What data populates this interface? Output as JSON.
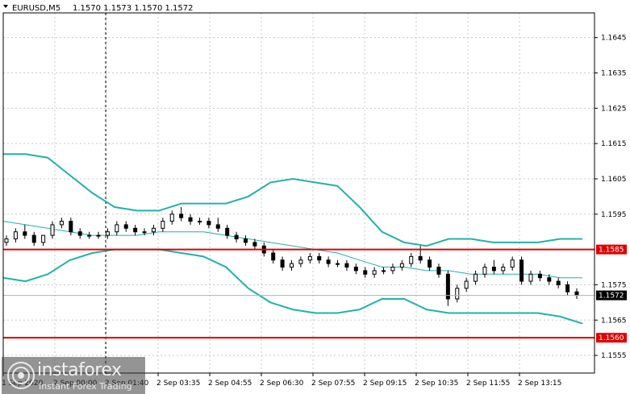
{
  "header": {
    "symbol": "EURUSD,M5",
    "ohlc": "1.1570 1.1573 1.1570 1.1572"
  },
  "logo": {
    "brand": "instaforex",
    "tagline": "Instant Forex Trading"
  },
  "chart_data": {
    "type": "candlestick",
    "ylim": [
      1.155,
      1.1652
    ],
    "y_ticks": [
      "1.1645",
      "1.1635",
      "1.1625",
      "1.1615",
      "1.1605",
      "1.1595",
      "1.1575",
      "1.1565",
      "1.1555"
    ],
    "x_ticks": [
      "1 Sep 2020",
      "2 Sep 00:00",
      "2 Sep 01:40",
      "2 Sep 03:35",
      "2 Sep 04:55",
      "2 Sep 06:30",
      "2 Sep 07:55",
      "2 Sep 09:15",
      "2 Sep 10:35",
      "2 Sep 11:55",
      "2 Sep 13:15"
    ],
    "levels": [
      {
        "label": "1.1585",
        "value": 1.1585,
        "color": "#e00000"
      },
      {
        "label": "1.1560",
        "value": 1.156,
        "color": "#e00000"
      }
    ],
    "current_price": {
      "label": "1.1572",
      "value": 1.1572
    },
    "bands": {
      "upper": [
        1.1612,
        1.1612,
        1.1611,
        1.1606,
        1.1601,
        1.1597,
        1.1596,
        1.1596,
        1.1598,
        1.1598,
        1.1598,
        1.16,
        1.1604,
        1.1605,
        1.1604,
        1.1603,
        1.1597,
        1.159,
        1.1587,
        1.1586,
        1.1588,
        1.1588,
        1.1587,
        1.1587,
        1.1587,
        1.1588,
        1.1588
      ],
      "middle": [
        1.1593,
        1.1592,
        1.1591,
        1.159,
        1.1589,
        1.1589,
        1.1589,
        1.159,
        1.159,
        1.159,
        1.1589,
        1.1588,
        1.1587,
        1.1586,
        1.1585,
        1.1584,
        1.1582,
        1.158,
        1.158,
        1.1579,
        1.1579,
        1.1578,
        1.1578,
        1.1578,
        1.1578,
        1.1577,
        1.1577
      ],
      "lower": [
        1.1577,
        1.1576,
        1.1578,
        1.1582,
        1.1584,
        1.1585,
        1.1585,
        1.1585,
        1.1584,
        1.1583,
        1.158,
        1.1574,
        1.157,
        1.1568,
        1.1567,
        1.1567,
        1.1568,
        1.1571,
        1.1571,
        1.1568,
        1.1567,
        1.1567,
        1.1567,
        1.1567,
        1.1567,
        1.1566,
        1.1564
      ]
    },
    "candles": [
      [
        1.1587,
        1.1589,
        1.1586,
        1.1588
      ],
      [
        1.1588,
        1.1591,
        1.1587,
        1.159
      ],
      [
        1.159,
        1.1592,
        1.1588,
        1.1589
      ],
      [
        1.1589,
        1.159,
        1.1586,
        1.1587
      ],
      [
        1.1587,
        1.1589,
        1.1586,
        1.1589
      ],
      [
        1.1589,
        1.1593,
        1.1588,
        1.1592
      ],
      [
        1.1592,
        1.1594,
        1.1591,
        1.1593
      ],
      [
        1.1593,
        1.1594,
        1.1589,
        1.159
      ],
      [
        1.159,
        1.1591,
        1.1588,
        1.1589
      ],
      [
        1.1589,
        1.159,
        1.1588,
        1.1589
      ],
      [
        1.1589,
        1.159,
        1.1588,
        1.1589
      ],
      [
        1.1589,
        1.1591,
        1.1588,
        1.159
      ],
      [
        1.159,
        1.1593,
        1.1589,
        1.1592
      ],
      [
        1.1592,
        1.1593,
        1.159,
        1.1591
      ],
      [
        1.1591,
        1.1592,
        1.1589,
        1.159
      ],
      [
        1.159,
        1.1591,
        1.1589,
        1.159
      ],
      [
        1.159,
        1.1592,
        1.1589,
        1.1591
      ],
      [
        1.1591,
        1.1594,
        1.159,
        1.1593
      ],
      [
        1.1593,
        1.1596,
        1.1592,
        1.1595
      ],
      [
        1.1595,
        1.1597,
        1.1593,
        1.1594
      ],
      [
        1.1594,
        1.1595,
        1.1592,
        1.1593
      ],
      [
        1.1593,
        1.1594,
        1.1592,
        1.1593
      ],
      [
        1.1593,
        1.1594,
        1.1591,
        1.1592
      ],
      [
        1.1592,
        1.1594,
        1.159,
        1.1591
      ],
      [
        1.1591,
        1.1592,
        1.1588,
        1.1589
      ],
      [
        1.1589,
        1.159,
        1.1587,
        1.1588
      ],
      [
        1.1588,
        1.1589,
        1.1586,
        1.1587
      ],
      [
        1.1587,
        1.1588,
        1.1585,
        1.1586
      ],
      [
        1.1586,
        1.1587,
        1.1583,
        1.1584
      ],
      [
        1.1584,
        1.1585,
        1.1581,
        1.1582
      ],
      [
        1.1582,
        1.1583,
        1.1579,
        1.158
      ],
      [
        1.158,
        1.1582,
        1.1579,
        1.1581
      ],
      [
        1.1581,
        1.1583,
        1.158,
        1.1582
      ],
      [
        1.1582,
        1.1584,
        1.1581,
        1.1583
      ],
      [
        1.1583,
        1.1584,
        1.1581,
        1.1582
      ],
      [
        1.1582,
        1.1583,
        1.158,
        1.1581
      ],
      [
        1.1581,
        1.1582,
        1.158,
        1.1581
      ],
      [
        1.1581,
        1.1582,
        1.1579,
        1.158
      ],
      [
        1.158,
        1.1581,
        1.1578,
        1.1579
      ],
      [
        1.1579,
        1.158,
        1.1577,
        1.1578
      ],
      [
        1.1578,
        1.158,
        1.1577,
        1.1579
      ],
      [
        1.1579,
        1.158,
        1.1578,
        1.1579
      ],
      [
        1.1579,
        1.1581,
        1.1578,
        1.158
      ],
      [
        1.158,
        1.1582,
        1.1579,
        1.1581
      ],
      [
        1.1581,
        1.1584,
        1.158,
        1.1583
      ],
      [
        1.1583,
        1.1586,
        1.1581,
        1.1582
      ],
      [
        1.1582,
        1.1583,
        1.1579,
        1.158
      ],
      [
        1.158,
        1.1581,
        1.1577,
        1.1578
      ],
      [
        1.1578,
        1.1579,
        1.1569,
        1.1571
      ],
      [
        1.1571,
        1.1575,
        1.157,
        1.1574
      ],
      [
        1.1574,
        1.1577,
        1.1573,
        1.1576
      ],
      [
        1.1576,
        1.1579,
        1.1575,
        1.1578
      ],
      [
        1.1578,
        1.1581,
        1.1577,
        1.158
      ],
      [
        1.158,
        1.1582,
        1.1578,
        1.1579
      ],
      [
        1.1579,
        1.1581,
        1.1578,
        1.158
      ],
      [
        1.158,
        1.1583,
        1.1579,
        1.1582
      ],
      [
        1.1582,
        1.1583,
        1.1575,
        1.1576
      ],
      [
        1.1576,
        1.1579,
        1.1575,
        1.1578
      ],
      [
        1.1578,
        1.1579,
        1.1576,
        1.1577
      ],
      [
        1.1577,
        1.1578,
        1.1575,
        1.1576
      ],
      [
        1.1576,
        1.1577,
        1.1574,
        1.1575
      ],
      [
        1.1575,
        1.1576,
        1.1572,
        1.1573
      ],
      [
        1.1573,
        1.1574,
        1.1571,
        1.1572
      ]
    ]
  }
}
